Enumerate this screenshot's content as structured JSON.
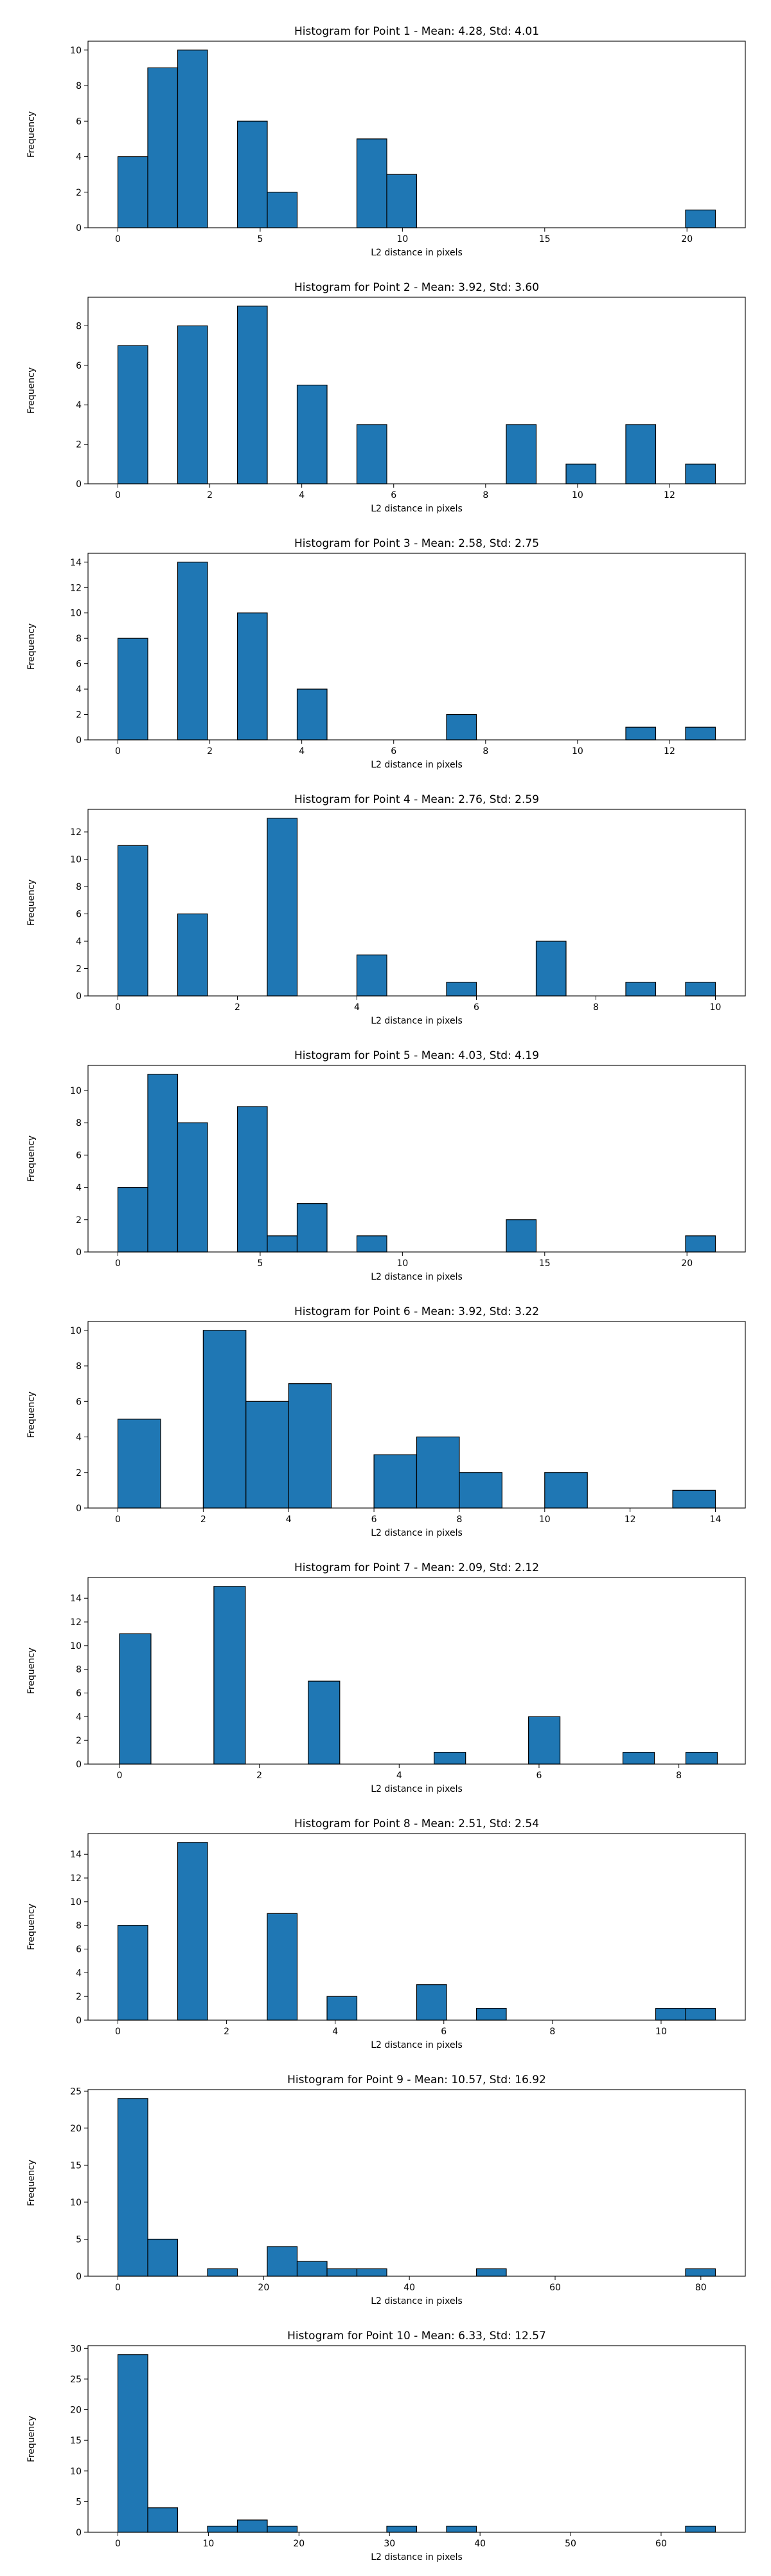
{
  "figure": {
    "bar_color": "#1f77b4",
    "edge_color": "#000000"
  },
  "chart_data": [
    {
      "type": "bar",
      "title": "Histogram for Point 1 - Mean: 4.28, Std: 4.01",
      "xlabel": "L2 distance in pixels",
      "ylabel": "Frequency",
      "xlim": [
        -1.05,
        22.05
      ],
      "ylim": [
        0,
        10.5
      ],
      "xticks": [
        0,
        5,
        10,
        15,
        20
      ],
      "yticks": [
        0,
        2,
        4,
        6,
        8,
        10
      ],
      "grid": false,
      "bins": [
        {
          "x0": 0.0,
          "x1": 1.05,
          "count": 4
        },
        {
          "x0": 1.05,
          "x1": 2.1,
          "count": 9
        },
        {
          "x0": 2.1,
          "x1": 3.15,
          "count": 10
        },
        {
          "x0": 4.2,
          "x1": 5.25,
          "count": 6
        },
        {
          "x0": 5.25,
          "x1": 6.3,
          "count": 2
        },
        {
          "x0": 8.4,
          "x1": 9.45,
          "count": 5
        },
        {
          "x0": 9.45,
          "x1": 10.5,
          "count": 3
        },
        {
          "x0": 19.95,
          "x1": 21.0,
          "count": 1
        }
      ]
    },
    {
      "type": "bar",
      "title": "Histogram for Point 2 - Mean: 3.92, Std: 3.60",
      "xlabel": "L2 distance in pixels",
      "ylabel": "Frequency",
      "xlim": [
        -0.65,
        13.65
      ],
      "ylim": [
        0,
        9.45
      ],
      "xticks": [
        0,
        2,
        4,
        6,
        8,
        10,
        12
      ],
      "yticks": [
        0,
        2,
        4,
        6,
        8
      ],
      "grid": false,
      "bins": [
        {
          "x0": 0.0,
          "x1": 0.65,
          "count": 7
        },
        {
          "x0": 1.3,
          "x1": 1.95,
          "count": 8
        },
        {
          "x0": 2.6,
          "x1": 3.25,
          "count": 9
        },
        {
          "x0": 3.9,
          "x1": 4.55,
          "count": 5
        },
        {
          "x0": 5.2,
          "x1": 5.85,
          "count": 3
        },
        {
          "x0": 8.45,
          "x1": 9.1,
          "count": 3
        },
        {
          "x0": 9.75,
          "x1": 10.4,
          "count": 1
        },
        {
          "x0": 11.05,
          "x1": 11.7,
          "count": 3
        },
        {
          "x0": 12.35,
          "x1": 13.0,
          "count": 1
        }
      ]
    },
    {
      "type": "bar",
      "title": "Histogram for Point 3 - Mean: 2.58, Std: 2.75",
      "xlabel": "L2 distance in pixels",
      "ylabel": "Frequency",
      "xlim": [
        -0.65,
        13.65
      ],
      "ylim": [
        0,
        14.7
      ],
      "xticks": [
        0,
        2,
        4,
        6,
        8,
        10,
        12
      ],
      "yticks": [
        0,
        2,
        4,
        6,
        8,
        10,
        12,
        14
      ],
      "grid": false,
      "bins": [
        {
          "x0": 0.0,
          "x1": 0.65,
          "count": 8
        },
        {
          "x0": 1.3,
          "x1": 1.95,
          "count": 14
        },
        {
          "x0": 2.6,
          "x1": 3.25,
          "count": 10
        },
        {
          "x0": 3.9,
          "x1": 4.55,
          "count": 4
        },
        {
          "x0": 7.15,
          "x1": 7.8,
          "count": 2
        },
        {
          "x0": 11.05,
          "x1": 11.7,
          "count": 1
        },
        {
          "x0": 12.35,
          "x1": 13.0,
          "count": 1
        }
      ]
    },
    {
      "type": "bar",
      "title": "Histogram for Point 4 - Mean: 2.76, Std: 2.59",
      "xlabel": "L2 distance in pixels",
      "ylabel": "Frequency",
      "xlim": [
        -0.5,
        10.5
      ],
      "ylim": [
        0,
        13.65
      ],
      "xticks": [
        0,
        2,
        4,
        6,
        8,
        10
      ],
      "yticks": [
        0,
        2,
        4,
        6,
        8,
        10,
        12
      ],
      "grid": false,
      "bins": [
        {
          "x0": 0.0,
          "x1": 0.5,
          "count": 11
        },
        {
          "x0": 1.0,
          "x1": 1.5,
          "count": 6
        },
        {
          "x0": 2.5,
          "x1": 3.0,
          "count": 13
        },
        {
          "x0": 4.0,
          "x1": 4.5,
          "count": 3
        },
        {
          "x0": 5.5,
          "x1": 6.0,
          "count": 1
        },
        {
          "x0": 7.0,
          "x1": 7.5,
          "count": 4
        },
        {
          "x0": 8.5,
          "x1": 9.0,
          "count": 1
        },
        {
          "x0": 9.5,
          "x1": 10.0,
          "count": 1
        }
      ]
    },
    {
      "type": "bar",
      "title": "Histogram for Point 5 - Mean: 4.03, Std: 4.19",
      "xlabel": "L2 distance in pixels",
      "ylabel": "Frequency",
      "xlim": [
        -1.05,
        22.05
      ],
      "ylim": [
        0,
        11.55
      ],
      "xticks": [
        0,
        5,
        10,
        15,
        20
      ],
      "yticks": [
        0,
        2,
        4,
        6,
        8,
        10
      ],
      "grid": false,
      "bins": [
        {
          "x0": 0.0,
          "x1": 1.05,
          "count": 4
        },
        {
          "x0": 1.05,
          "x1": 2.1,
          "count": 11
        },
        {
          "x0": 2.1,
          "x1": 3.15,
          "count": 8
        },
        {
          "x0": 4.2,
          "x1": 5.25,
          "count": 9
        },
        {
          "x0": 5.25,
          "x1": 6.3,
          "count": 1
        },
        {
          "x0": 6.3,
          "x1": 7.35,
          "count": 3
        },
        {
          "x0": 8.4,
          "x1": 9.45,
          "count": 1
        },
        {
          "x0": 13.65,
          "x1": 14.7,
          "count": 2
        },
        {
          "x0": 19.95,
          "x1": 21.0,
          "count": 1
        }
      ]
    },
    {
      "type": "bar",
      "title": "Histogram for Point 6 - Mean: 3.92, Std: 3.22",
      "xlabel": "L2 distance in pixels",
      "ylabel": "Frequency",
      "xlim": [
        -0.7,
        14.7
      ],
      "ylim": [
        0,
        10.5
      ],
      "xticks": [
        0,
        2,
        4,
        6,
        8,
        10,
        12,
        14
      ],
      "yticks": [
        0,
        2,
        4,
        6,
        8,
        10
      ],
      "grid": false,
      "bins": [
        {
          "x0": 0.0,
          "x1": 1.0,
          "count": 5
        },
        {
          "x0": 2.0,
          "x1": 3.0,
          "count": 10
        },
        {
          "x0": 3.0,
          "x1": 4.0,
          "count": 6
        },
        {
          "x0": 4.0,
          "x1": 5.0,
          "count": 7
        },
        {
          "x0": 6.0,
          "x1": 7.0,
          "count": 3
        },
        {
          "x0": 7.0,
          "x1": 8.0,
          "count": 4
        },
        {
          "x0": 8.0,
          "x1": 9.0,
          "count": 2
        },
        {
          "x0": 10.0,
          "x1": 11.0,
          "count": 2
        },
        {
          "x0": 13.0,
          "x1": 14.0,
          "count": 1
        }
      ]
    },
    {
      "type": "bar",
      "title": "Histogram for Point 7 - Mean: 2.09, Std: 2.12",
      "xlabel": "L2 distance in pixels",
      "ylabel": "Frequency",
      "xlim": [
        -0.45,
        8.95
      ],
      "ylim": [
        0,
        15.75
      ],
      "xticks": [
        0,
        2,
        4,
        6,
        8
      ],
      "yticks": [
        0,
        2,
        4,
        6,
        8,
        10,
        12,
        14
      ],
      "grid": false,
      "bins": [
        {
          "x0": 0.0,
          "x1": 0.45,
          "count": 11
        },
        {
          "x0": 1.35,
          "x1": 1.8,
          "count": 15
        },
        {
          "x0": 2.7,
          "x1": 3.15,
          "count": 7
        },
        {
          "x0": 4.5,
          "x1": 4.95,
          "count": 1
        },
        {
          "x0": 5.85,
          "x1": 6.3,
          "count": 4
        },
        {
          "x0": 7.2,
          "x1": 7.65,
          "count": 1
        },
        {
          "x0": 8.1,
          "x1": 8.55,
          "count": 1
        }
      ]
    },
    {
      "type": "bar",
      "title": "Histogram for Point 8 - Mean: 2.51, Std: 2.54",
      "xlabel": "L2 distance in pixels",
      "ylabel": "Frequency",
      "xlim": [
        -0.55,
        11.55
      ],
      "ylim": [
        0,
        15.75
      ],
      "xticks": [
        0,
        2,
        4,
        6,
        8,
        10
      ],
      "yticks": [
        0,
        2,
        4,
        6,
        8,
        10,
        12,
        14
      ],
      "grid": false,
      "bins": [
        {
          "x0": 0.0,
          "x1": 0.55,
          "count": 8
        },
        {
          "x0": 1.1,
          "x1": 1.65,
          "count": 15
        },
        {
          "x0": 2.75,
          "x1": 3.3,
          "count": 9
        },
        {
          "x0": 3.85,
          "x1": 4.4,
          "count": 2
        },
        {
          "x0": 5.5,
          "x1": 6.05,
          "count": 3
        },
        {
          "x0": 6.6,
          "x1": 7.15,
          "count": 1
        },
        {
          "x0": 9.9,
          "x1": 10.45,
          "count": 1
        },
        {
          "x0": 10.45,
          "x1": 11.0,
          "count": 1
        }
      ]
    },
    {
      "type": "bar",
      "title": "Histogram for Point 9 - Mean: 10.57, Std: 16.92",
      "xlabel": "L2 distance in pixels",
      "ylabel": "Frequency",
      "xlim": [
        -4.1,
        86.1
      ],
      "ylim": [
        0,
        25.2
      ],
      "xticks": [
        0,
        20,
        40,
        60,
        80
      ],
      "yticks": [
        0,
        5,
        10,
        15,
        20,
        25
      ],
      "grid": false,
      "bins": [
        {
          "x0": 0.0,
          "x1": 4.1,
          "count": 24
        },
        {
          "x0": 4.1,
          "x1": 8.2,
          "count": 5
        },
        {
          "x0": 12.3,
          "x1": 16.4,
          "count": 1
        },
        {
          "x0": 20.5,
          "x1": 24.6,
          "count": 4
        },
        {
          "x0": 24.6,
          "x1": 28.7,
          "count": 2
        },
        {
          "x0": 28.7,
          "x1": 32.8,
          "count": 1
        },
        {
          "x0": 32.8,
          "x1": 36.9,
          "count": 1
        },
        {
          "x0": 49.2,
          "x1": 53.3,
          "count": 1
        },
        {
          "x0": 77.9,
          "x1": 82.0,
          "count": 1
        }
      ]
    },
    {
      "type": "bar",
      "title": "Histogram for Point 10 - Mean: 6.33, Std: 12.57",
      "xlabel": "L2 distance in pixels",
      "ylabel": "Frequency",
      "xlim": [
        -3.3,
        69.3
      ],
      "ylim": [
        0,
        30.45
      ],
      "xticks": [
        0,
        10,
        20,
        30,
        40,
        50,
        60
      ],
      "yticks": [
        0,
        5,
        10,
        15,
        20,
        25,
        30
      ],
      "grid": false,
      "bins": [
        {
          "x0": 0.0,
          "x1": 3.3,
          "count": 29
        },
        {
          "x0": 3.3,
          "x1": 6.6,
          "count": 4
        },
        {
          "x0": 9.9,
          "x1": 13.2,
          "count": 1
        },
        {
          "x0": 13.2,
          "x1": 16.5,
          "count": 2
        },
        {
          "x0": 16.5,
          "x1": 19.8,
          "count": 1
        },
        {
          "x0": 29.7,
          "x1": 33.0,
          "count": 1
        },
        {
          "x0": 36.3,
          "x1": 39.6,
          "count": 1
        },
        {
          "x0": 62.7,
          "x1": 66.0,
          "count": 1
        }
      ]
    }
  ]
}
